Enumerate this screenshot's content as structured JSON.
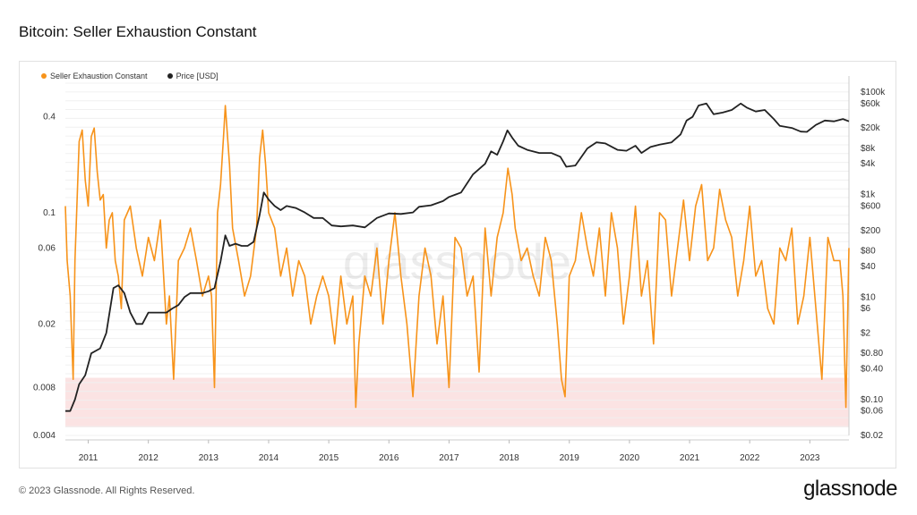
{
  "title": "Bitcoin: Seller Exhaustion Constant",
  "footer": "© 2023 Glassnode. All Rights Reserved.",
  "brand": "glassnode",
  "watermark": "glassnode",
  "colors": {
    "sec": "#f7931a",
    "price": "#222222",
    "band": "#fbe3e3"
  },
  "chart_data": {
    "type": "line",
    "x_ticks": [
      "2011",
      "2012",
      "2013",
      "2014",
      "2015",
      "2016",
      "2017",
      "2018",
      "2019",
      "2020",
      "2021",
      "2022",
      "2023"
    ],
    "xlim": [
      2010.62,
      2023.65
    ],
    "grid": true,
    "left_axis": {
      "scale": "log",
      "range": [
        0.004,
        0.65
      ],
      "ticks": [
        {
          "value": 0.004,
          "label": "0.004"
        },
        {
          "value": 0.008,
          "label": "0.008"
        },
        {
          "value": 0.02,
          "label": "0.02"
        },
        {
          "value": 0.06,
          "label": "0.06"
        },
        {
          "value": 0.1,
          "label": "0.1"
        },
        {
          "value": 0.4,
          "label": "0.4"
        }
      ]
    },
    "right_axis": {
      "scale": "log",
      "range": [
        0.02,
        150000
      ],
      "ticks": [
        {
          "value": 0.02,
          "label": "$0.02"
        },
        {
          "value": 0.06,
          "label": "$0.06"
        },
        {
          "value": 0.1,
          "label": "$0.10"
        },
        {
          "value": 0.4,
          "label": "$0.40"
        },
        {
          "value": 0.8,
          "label": "$0.80"
        },
        {
          "value": 2,
          "label": "$2"
        },
        {
          "value": 6,
          "label": "$6"
        },
        {
          "value": 10,
          "label": "$10"
        },
        {
          "value": 40,
          "label": "$40"
        },
        {
          "value": 80,
          "label": "$80"
        },
        {
          "value": 200,
          "label": "$200"
        },
        {
          "value": 600,
          "label": "$600"
        },
        {
          "value": 1000,
          "label": "$1k"
        },
        {
          "value": 4000,
          "label": "$4k"
        },
        {
          "value": 8000,
          "label": "$8k"
        },
        {
          "value": 20000,
          "label": "$20k"
        },
        {
          "value": 60000,
          "label": "$60k"
        },
        {
          "value": 100000,
          "label": "$100k"
        }
      ]
    },
    "threshold_band": {
      "from": 0.0045,
      "to": 0.0092
    },
    "series": [
      {
        "name": "Seller Exhaustion Constant",
        "axis": "left",
        "x": [
          2010.62,
          2010.65,
          2010.7,
          2010.75,
          2010.78,
          2010.85,
          2010.9,
          2010.95,
          2011.0,
          2011.05,
          2011.1,
          2011.15,
          2011.2,
          2011.25,
          2011.3,
          2011.35,
          2011.4,
          2011.45,
          2011.5,
          2011.55,
          2011.6,
          2011.7,
          2011.8,
          2011.9,
          2012.0,
          2012.1,
          2012.2,
          2012.3,
          2012.35,
          2012.42,
          2012.5,
          2012.6,
          2012.7,
          2012.8,
          2012.9,
          2013.0,
          2013.05,
          2013.1,
          2013.15,
          2013.2,
          2013.25,
          2013.28,
          2013.35,
          2013.4,
          2013.5,
          2013.6,
          2013.7,
          2013.8,
          2013.85,
          2013.9,
          2013.95,
          2014.0,
          2014.1,
          2014.2,
          2014.3,
          2014.4,
          2014.5,
          2014.6,
          2014.7,
          2014.8,
          2014.9,
          2015.0,
          2015.1,
          2015.2,
          2015.3,
          2015.4,
          2015.45,
          2015.5,
          2015.6,
          2015.7,
          2015.8,
          2015.9,
          2016.0,
          2016.1,
          2016.2,
          2016.3,
          2016.4,
          2016.5,
          2016.6,
          2016.7,
          2016.8,
          2016.9,
          2017.0,
          2017.1,
          2017.2,
          2017.3,
          2017.4,
          2017.5,
          2017.6,
          2017.7,
          2017.8,
          2017.9,
          2017.98,
          2018.05,
          2018.1,
          2018.2,
          2018.3,
          2018.4,
          2018.5,
          2018.6,
          2018.7,
          2018.8,
          2018.87,
          2018.93,
          2019.0,
          2019.1,
          2019.2,
          2019.3,
          2019.4,
          2019.5,
          2019.6,
          2019.7,
          2019.8,
          2019.9,
          2020.0,
          2020.1,
          2020.2,
          2020.3,
          2020.4,
          2020.5,
          2020.6,
          2020.7,
          2020.8,
          2020.9,
          2021.0,
          2021.1,
          2021.2,
          2021.3,
          2021.4,
          2021.5,
          2021.6,
          2021.7,
          2021.8,
          2021.9,
          2022.0,
          2022.1,
          2022.2,
          2022.3,
          2022.4,
          2022.5,
          2022.6,
          2022.7,
          2022.8,
          2022.9,
          2023.0,
          2023.1,
          2023.2,
          2023.3,
          2023.4,
          2023.5,
          2023.55,
          2023.6,
          2023.65
        ],
        "y": [
          0.11,
          0.05,
          0.03,
          0.009,
          0.05,
          0.28,
          0.33,
          0.16,
          0.11,
          0.3,
          0.34,
          0.18,
          0.12,
          0.13,
          0.06,
          0.09,
          0.1,
          0.05,
          0.04,
          0.025,
          0.09,
          0.11,
          0.06,
          0.04,
          0.07,
          0.05,
          0.09,
          0.02,
          0.03,
          0.009,
          0.05,
          0.06,
          0.08,
          0.05,
          0.03,
          0.04,
          0.03,
          0.008,
          0.1,
          0.15,
          0.3,
          0.47,
          0.2,
          0.08,
          0.05,
          0.03,
          0.04,
          0.08,
          0.22,
          0.33,
          0.2,
          0.1,
          0.08,
          0.04,
          0.06,
          0.03,
          0.05,
          0.04,
          0.02,
          0.03,
          0.04,
          0.03,
          0.015,
          0.04,
          0.02,
          0.03,
          0.006,
          0.015,
          0.04,
          0.03,
          0.06,
          0.02,
          0.05,
          0.1,
          0.04,
          0.02,
          0.007,
          0.03,
          0.06,
          0.04,
          0.015,
          0.03,
          0.008,
          0.07,
          0.06,
          0.03,
          0.04,
          0.01,
          0.08,
          0.03,
          0.07,
          0.1,
          0.19,
          0.13,
          0.08,
          0.05,
          0.06,
          0.04,
          0.03,
          0.07,
          0.05,
          0.02,
          0.009,
          0.007,
          0.04,
          0.05,
          0.1,
          0.06,
          0.04,
          0.08,
          0.03,
          0.1,
          0.06,
          0.02,
          0.04,
          0.11,
          0.03,
          0.05,
          0.015,
          0.1,
          0.09,
          0.03,
          0.06,
          0.12,
          0.05,
          0.11,
          0.15,
          0.05,
          0.06,
          0.14,
          0.09,
          0.07,
          0.03,
          0.05,
          0.11,
          0.04,
          0.05,
          0.025,
          0.02,
          0.06,
          0.05,
          0.08,
          0.02,
          0.03,
          0.07,
          0.025,
          0.009,
          0.07,
          0.05,
          0.05,
          0.03,
          0.006,
          0.06
        ]
      },
      {
        "name": "Price [USD]",
        "axis": "right",
        "x": [
          2010.62,
          2010.7,
          2010.78,
          2010.85,
          2010.95,
          2011.05,
          2011.2,
          2011.3,
          2011.42,
          2011.5,
          2011.6,
          2011.7,
          2011.8,
          2011.9,
          2012.0,
          2012.1,
          2012.2,
          2012.3,
          2012.4,
          2012.5,
          2012.6,
          2012.7,
          2012.8,
          2012.9,
          2013.0,
          2013.1,
          2013.2,
          2013.28,
          2013.35,
          2013.45,
          2013.55,
          2013.65,
          2013.75,
          2013.85,
          2013.92,
          2014.0,
          2014.1,
          2014.2,
          2014.3,
          2014.45,
          2014.6,
          2014.75,
          2014.9,
          2015.05,
          2015.2,
          2015.4,
          2015.6,
          2015.8,
          2016.0,
          2016.2,
          2016.4,
          2016.5,
          2016.7,
          2016.9,
          2017.0,
          2017.2,
          2017.4,
          2017.6,
          2017.7,
          2017.8,
          2017.9,
          2017.97,
          2018.05,
          2018.15,
          2018.3,
          2018.5,
          2018.7,
          2018.85,
          2018.95,
          2019.1,
          2019.3,
          2019.45,
          2019.6,
          2019.8,
          2019.95,
          2020.1,
          2020.2,
          2020.35,
          2020.5,
          2020.7,
          2020.85,
          2020.95,
          2021.05,
          2021.15,
          2021.28,
          2021.4,
          2021.55,
          2021.7,
          2021.85,
          2021.95,
          2022.1,
          2022.25,
          2022.4,
          2022.5,
          2022.7,
          2022.85,
          2022.95,
          2023.1,
          2023.25,
          2023.4,
          2023.55,
          2023.65
        ],
        "y": [
          0.06,
          0.06,
          0.1,
          0.2,
          0.3,
          0.8,
          1,
          2,
          15,
          17,
          12,
          5,
          3,
          3,
          5,
          5,
          5,
          5,
          6,
          7,
          10,
          12,
          12,
          12,
          13,
          15,
          50,
          160,
          100,
          110,
          100,
          100,
          120,
          400,
          1100,
          800,
          600,
          500,
          600,
          550,
          450,
          350,
          350,
          250,
          240,
          250,
          230,
          350,
          430,
          420,
          450,
          580,
          620,
          750,
          900,
          1100,
          2500,
          4000,
          7000,
          6000,
          11000,
          18000,
          13000,
          9000,
          7500,
          6500,
          6500,
          5500,
          3500,
          3700,
          8000,
          10500,
          10000,
          7500,
          7200,
          9000,
          6500,
          8500,
          9500,
          10500,
          15000,
          28000,
          33000,
          55000,
          60000,
          37000,
          40000,
          45000,
          60000,
          50000,
          42000,
          45000,
          30000,
          22000,
          20000,
          17000,
          16800,
          23000,
          28000,
          27000,
          30000,
          27000
        ]
      }
    ]
  }
}
